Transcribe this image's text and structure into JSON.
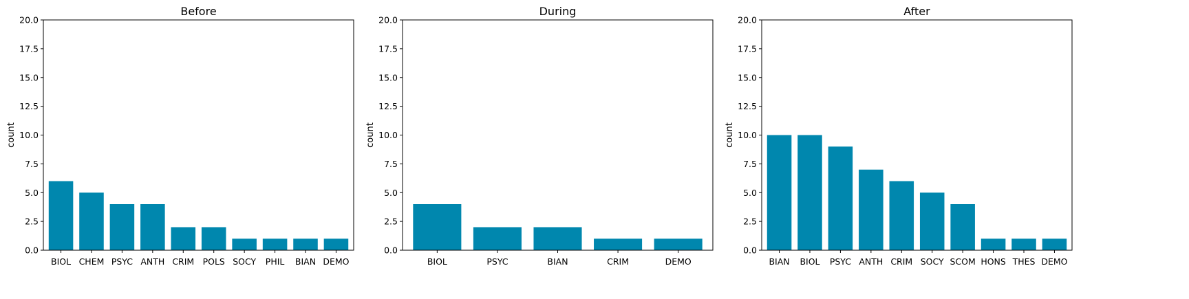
{
  "chart_data": [
    {
      "type": "bar",
      "title": "Before",
      "ylabel": "count",
      "ylim": [
        0,
        20
      ],
      "yticks": [
        "0.0",
        "2.5",
        "5.0",
        "7.5",
        "10.0",
        "12.5",
        "15.0",
        "17.5",
        "20.0"
      ],
      "bar_color": "#0087ae",
      "categories": [
        "BIOL",
        "CHEM",
        "PSYC",
        "ANTH",
        "CRIM",
        "POLS",
        "SOCY",
        "PHIL",
        "BIAN",
        "DEMO"
      ],
      "values": [
        6,
        5,
        4,
        4,
        2,
        2,
        1,
        1,
        1,
        1
      ]
    },
    {
      "type": "bar",
      "title": "During",
      "ylabel": "count",
      "ylim": [
        0,
        20
      ],
      "yticks": [
        "0.0",
        "2.5",
        "5.0",
        "7.5",
        "10.0",
        "12.5",
        "15.0",
        "17.5",
        "20.0"
      ],
      "bar_color": "#0087ae",
      "categories": [
        "BIOL",
        "PSYC",
        "BIAN",
        "CRIM",
        "DEMO"
      ],
      "values": [
        4,
        2,
        2,
        1,
        1
      ]
    },
    {
      "type": "bar",
      "title": "After",
      "ylabel": "count",
      "ylim": [
        0,
        20
      ],
      "yticks": [
        "0.0",
        "2.5",
        "5.0",
        "7.5",
        "10.0",
        "12.5",
        "15.0",
        "17.5",
        "20.0"
      ],
      "bar_color": "#0087ae",
      "categories": [
        "BIAN",
        "BIOL",
        "PSYC",
        "ANTH",
        "CRIM",
        "SOCY",
        "SCOM",
        "HONS",
        "THES",
        "DEMO"
      ],
      "values": [
        10,
        10,
        9,
        7,
        6,
        5,
        4,
        1,
        1,
        1
      ]
    }
  ]
}
